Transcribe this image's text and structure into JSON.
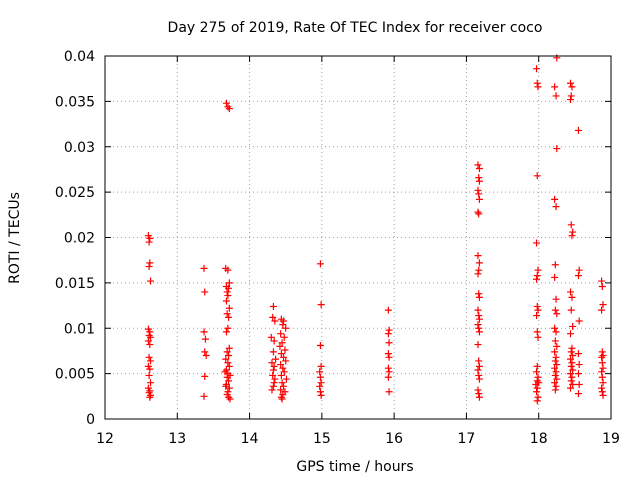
{
  "chart_data": {
    "type": "scatter",
    "title": "Day 275 of 2019, Rate Of TEC Index for receiver coco",
    "xlabel": "GPS time / hours",
    "ylabel": "ROTI / TECUs",
    "xlim": [
      12,
      19
    ],
    "ylim": [
      0,
      0.04
    ],
    "xticks": [
      12,
      13,
      14,
      15,
      16,
      17,
      18,
      19
    ],
    "xtick_labels": [
      "12",
      "13",
      "14",
      "15",
      "16",
      "17",
      "18",
      "19"
    ],
    "yticks": [
      0,
      0.005,
      0.01,
      0.015,
      0.02,
      0.025,
      0.03,
      0.035,
      0.04
    ],
    "ytick_labels": [
      "0",
      "0.005",
      "0.01",
      "0.015",
      "0.02",
      "0.025",
      "0.03",
      "0.035",
      "0.04"
    ],
    "grid": true,
    "marker": "+",
    "marker_color": "#ff0000",
    "series": [
      {
        "name": "ROTI",
        "points": [
          [
            12.6,
            0.0202
          ],
          [
            12.61,
            0.0195
          ],
          [
            12.62,
            0.0199
          ],
          [
            12.62,
            0.0172
          ],
          [
            12.61,
            0.0168
          ],
          [
            12.63,
            0.0152
          ],
          [
            12.6,
            0.0099
          ],
          [
            12.62,
            0.0096
          ],
          [
            12.61,
            0.0092
          ],
          [
            12.63,
            0.009
          ],
          [
            12.6,
            0.0086
          ],
          [
            12.62,
            0.0082
          ],
          [
            12.61,
            0.0068
          ],
          [
            12.63,
            0.0064
          ],
          [
            12.6,
            0.0058
          ],
          [
            12.62,
            0.0055
          ],
          [
            12.61,
            0.0048
          ],
          [
            12.63,
            0.004
          ],
          [
            12.6,
            0.0034
          ],
          [
            12.62,
            0.0031
          ],
          [
            12.61,
            0.0029
          ],
          [
            12.63,
            0.0026
          ],
          [
            12.62,
            0.0024
          ],
          [
            13.37,
            0.0166
          ],
          [
            13.38,
            0.014
          ],
          [
            13.37,
            0.0096
          ],
          [
            13.39,
            0.0088
          ],
          [
            13.38,
            0.0074
          ],
          [
            13.4,
            0.007
          ],
          [
            13.38,
            0.0047
          ],
          [
            13.37,
            0.0025
          ],
          [
            13.68,
            0.0348
          ],
          [
            13.7,
            0.0344
          ],
          [
            13.72,
            0.0342
          ],
          [
            13.67,
            0.0166
          ],
          [
            13.7,
            0.0164
          ],
          [
            13.72,
            0.015
          ],
          [
            13.68,
            0.0146
          ],
          [
            13.71,
            0.0144
          ],
          [
            13.69,
            0.014
          ],
          [
            13.7,
            0.0136
          ],
          [
            13.68,
            0.013
          ],
          [
            13.72,
            0.0122
          ],
          [
            13.69,
            0.0116
          ],
          [
            13.71,
            0.0112
          ],
          [
            13.7,
            0.01
          ],
          [
            13.68,
            0.0096
          ],
          [
            13.72,
            0.0078
          ],
          [
            13.69,
            0.0074
          ],
          [
            13.71,
            0.007
          ],
          [
            13.67,
            0.0066
          ],
          [
            13.7,
            0.0062
          ],
          [
            13.72,
            0.0058
          ],
          [
            13.68,
            0.0054
          ],
          [
            13.7,
            0.005
          ],
          [
            13.69,
            0.0046
          ],
          [
            13.71,
            0.0042
          ],
          [
            13.68,
            0.0038
          ],
          [
            13.72,
            0.0034
          ],
          [
            13.7,
            0.003
          ],
          [
            13.69,
            0.0027
          ],
          [
            13.71,
            0.0024
          ],
          [
            13.73,
            0.0022
          ],
          [
            13.67,
            0.0036
          ],
          [
            13.73,
            0.0048
          ],
          [
            13.66,
            0.0052
          ],
          [
            14.33,
            0.0124
          ],
          [
            14.32,
            0.0112
          ],
          [
            14.35,
            0.0108
          ],
          [
            14.3,
            0.009
          ],
          [
            14.34,
            0.0086
          ],
          [
            14.33,
            0.0074
          ],
          [
            14.36,
            0.0066
          ],
          [
            14.31,
            0.0062
          ],
          [
            14.34,
            0.0058
          ],
          [
            14.33,
            0.0054
          ],
          [
            14.32,
            0.0048
          ],
          [
            14.35,
            0.0044
          ],
          [
            14.34,
            0.004
          ],
          [
            14.33,
            0.0036
          ],
          [
            14.31,
            0.0032
          ],
          [
            14.44,
            0.011
          ],
          [
            14.47,
            0.0108
          ],
          [
            14.46,
            0.0104
          ],
          [
            14.5,
            0.01
          ],
          [
            14.43,
            0.0094
          ],
          [
            14.48,
            0.009
          ],
          [
            14.45,
            0.0084
          ],
          [
            14.42,
            0.008
          ],
          [
            14.49,
            0.0076
          ],
          [
            14.44,
            0.0072
          ],
          [
            14.47,
            0.0068
          ],
          [
            14.5,
            0.0064
          ],
          [
            14.43,
            0.006
          ],
          [
            14.46,
            0.0056
          ],
          [
            14.48,
            0.0052
          ],
          [
            14.44,
            0.0048
          ],
          [
            14.51,
            0.0044
          ],
          [
            14.45,
            0.004
          ],
          [
            14.47,
            0.0036
          ],
          [
            14.43,
            0.0032
          ],
          [
            14.49,
            0.003
          ],
          [
            14.46,
            0.0027
          ],
          [
            14.44,
            0.0024
          ],
          [
            14.45,
            0.0022
          ],
          [
            14.98,
            0.0171
          ],
          [
            14.99,
            0.0126
          ],
          [
            14.98,
            0.0081
          ],
          [
            14.99,
            0.0058
          ],
          [
            14.97,
            0.0052
          ],
          [
            14.98,
            0.0046
          ],
          [
            14.99,
            0.004
          ],
          [
            14.97,
            0.0036
          ],
          [
            14.98,
            0.003
          ],
          [
            14.99,
            0.0026
          ],
          [
            15.92,
            0.012
          ],
          [
            15.93,
            0.0098
          ],
          [
            15.92,
            0.0094
          ],
          [
            15.93,
            0.0084
          ],
          [
            15.92,
            0.0072
          ],
          [
            15.93,
            0.0068
          ],
          [
            15.92,
            0.0056
          ],
          [
            15.93,
            0.0052
          ],
          [
            15.92,
            0.0046
          ],
          [
            15.93,
            0.003
          ],
          [
            17.16,
            0.028
          ],
          [
            17.18,
            0.0276
          ],
          [
            17.17,
            0.0266
          ],
          [
            17.18,
            0.0262
          ],
          [
            17.16,
            0.0252
          ],
          [
            17.17,
            0.0248
          ],
          [
            17.18,
            0.0242
          ],
          [
            17.16,
            0.0228
          ],
          [
            17.17,
            0.0226
          ],
          [
            17.16,
            0.018
          ],
          [
            17.18,
            0.0172
          ],
          [
            17.17,
            0.0164
          ],
          [
            17.16,
            0.016
          ],
          [
            17.17,
            0.0138
          ],
          [
            17.18,
            0.0134
          ],
          [
            17.16,
            0.012
          ],
          [
            17.17,
            0.0114
          ],
          [
            17.18,
            0.011
          ],
          [
            17.16,
            0.0104
          ],
          [
            17.17,
            0.01
          ],
          [
            17.18,
            0.0096
          ],
          [
            17.16,
            0.0082
          ],
          [
            17.17,
            0.0064
          ],
          [
            17.18,
            0.0058
          ],
          [
            17.16,
            0.0054
          ],
          [
            17.17,
            0.0048
          ],
          [
            17.18,
            0.0044
          ],
          [
            17.16,
            0.0032
          ],
          [
            17.17,
            0.0028
          ],
          [
            17.18,
            0.0024
          ],
          [
            17.97,
            0.0386
          ],
          [
            17.98,
            0.037
          ],
          [
            17.99,
            0.0366
          ],
          [
            17.98,
            0.0268
          ],
          [
            17.97,
            0.0194
          ],
          [
            17.99,
            0.0164
          ],
          [
            17.98,
            0.0158
          ],
          [
            17.97,
            0.0154
          ],
          [
            17.98,
            0.0124
          ],
          [
            17.99,
            0.012
          ],
          [
            17.97,
            0.0114
          ],
          [
            17.98,
            0.0096
          ],
          [
            17.99,
            0.009
          ],
          [
            17.98,
            0.0058
          ],
          [
            17.97,
            0.0052
          ],
          [
            17.99,
            0.0046
          ],
          [
            17.98,
            0.0042
          ],
          [
            18.0,
            0.004
          ],
          [
            17.96,
            0.0038
          ],
          [
            17.98,
            0.0034
          ],
          [
            17.97,
            0.003
          ],
          [
            17.99,
            0.0024
          ],
          [
            17.98,
            0.002
          ],
          [
            18.25,
            0.0398
          ],
          [
            18.22,
            0.0366
          ],
          [
            18.24,
            0.0356
          ],
          [
            18.25,
            0.0298
          ],
          [
            18.22,
            0.0242
          ],
          [
            18.24,
            0.0234
          ],
          [
            18.23,
            0.017
          ],
          [
            18.22,
            0.0156
          ],
          [
            18.24,
            0.0132
          ],
          [
            18.23,
            0.012
          ],
          [
            18.25,
            0.0116
          ],
          [
            18.22,
            0.01
          ],
          [
            18.24,
            0.0096
          ],
          [
            18.23,
            0.0086
          ],
          [
            18.25,
            0.008
          ],
          [
            18.22,
            0.0074
          ],
          [
            18.24,
            0.0068
          ],
          [
            18.23,
            0.0064
          ],
          [
            18.25,
            0.006
          ],
          [
            18.22,
            0.0056
          ],
          [
            18.24,
            0.0052
          ],
          [
            18.23,
            0.0048
          ],
          [
            18.25,
            0.0044
          ],
          [
            18.22,
            0.004
          ],
          [
            18.24,
            0.0036
          ],
          [
            18.23,
            0.0032
          ],
          [
            18.44,
            0.037
          ],
          [
            18.46,
            0.0366
          ],
          [
            18.45,
            0.0356
          ],
          [
            18.44,
            0.0352
          ],
          [
            18.45,
            0.0214
          ],
          [
            18.47,
            0.0206
          ],
          [
            18.46,
            0.0202
          ],
          [
            18.44,
            0.014
          ],
          [
            18.46,
            0.0134
          ],
          [
            18.45,
            0.012
          ],
          [
            18.47,
            0.0102
          ],
          [
            18.44,
            0.0094
          ],
          [
            18.46,
            0.0078
          ],
          [
            18.45,
            0.0074
          ],
          [
            18.47,
            0.007
          ],
          [
            18.44,
            0.0066
          ],
          [
            18.46,
            0.0062
          ],
          [
            18.45,
            0.0058
          ],
          [
            18.47,
            0.0054
          ],
          [
            18.44,
            0.005
          ],
          [
            18.46,
            0.0046
          ],
          [
            18.45,
            0.0042
          ],
          [
            18.47,
            0.0038
          ],
          [
            18.44,
            0.0034
          ],
          [
            18.55,
            0.0318
          ],
          [
            18.56,
            0.0164
          ],
          [
            18.55,
            0.0158
          ],
          [
            18.56,
            0.0108
          ],
          [
            18.55,
            0.0072
          ],
          [
            18.56,
            0.006
          ],
          [
            18.55,
            0.005
          ],
          [
            18.56,
            0.0038
          ],
          [
            18.55,
            0.0028
          ],
          [
            18.87,
            0.0152
          ],
          [
            18.88,
            0.0146
          ],
          [
            18.89,
            0.0126
          ],
          [
            18.87,
            0.012
          ],
          [
            18.88,
            0.0074
          ],
          [
            18.89,
            0.007
          ],
          [
            18.87,
            0.0068
          ],
          [
            18.88,
            0.0062
          ],
          [
            18.89,
            0.0056
          ],
          [
            18.87,
            0.0052
          ],
          [
            18.88,
            0.0046
          ],
          [
            18.89,
            0.004
          ],
          [
            18.87,
            0.0034
          ],
          [
            18.88,
            0.003
          ],
          [
            18.89,
            0.0026
          ]
        ]
      }
    ]
  }
}
